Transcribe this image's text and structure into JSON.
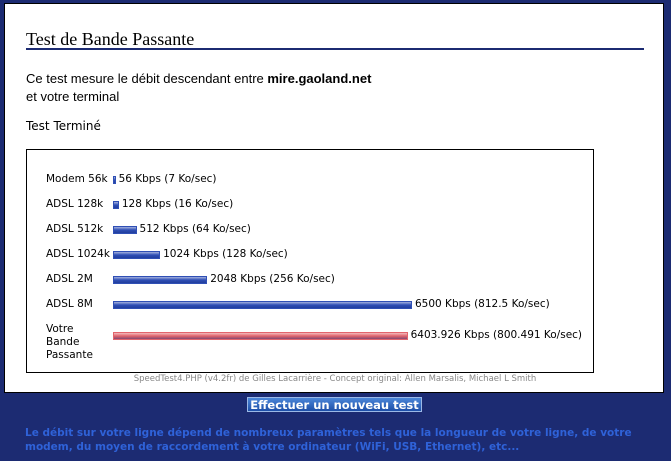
{
  "header": {
    "title": "Test de Bande Passante"
  },
  "intro": {
    "text": "Ce test mesure le débit descendant entre ",
    "host": "mire.gaoland.net",
    "text2": "et votre terminal"
  },
  "status": "Test Terminé",
  "speed_chart": {
    "type": "bar",
    "categories": [
      "Modem 56k",
      "ADSL 128k",
      "ADSL 512k",
      "ADSL 1024k",
      "ADSL 2M",
      "ADSL 8M",
      "Votre Bande Passante"
    ],
    "values": [
      56,
      128,
      512,
      1024,
      2048,
      6500,
      6403.926
    ],
    "value_labels": [
      "56 Kbps (7 Ko/sec)",
      "128 Kbps (16 Ko/sec)",
      "512 Kbps (64 Ko/sec)",
      "1024 Kbps (128 Ko/sec)",
      "2048 Kbps (256 Ko/sec)",
      "6500 Kbps (812.5 Ko/sec)",
      "6403.926 Kbps (800.491 Ko/sec)"
    ],
    "colors": [
      "#2f4fb5",
      "#2f4fb5",
      "#2f4fb5",
      "#2f4fb5",
      "#2f4fb5",
      "#2f4fb5",
      "#e2646c"
    ]
  },
  "credit": "SpeedTest4.PHP (v4.2fr) de Gilles Lacarrière - Concept original: Allen Marsalis, Michael L Smith",
  "button": "Effectuer un nouveau test",
  "note": [
    "Le débit sur votre ligne dépend de nombreux paramètres tels que la longueur de votre ligne, de votre",
    "modem, du moyen de raccordement à votre ordinateur (WiFi, USB, Ethernet), etc..."
  ]
}
